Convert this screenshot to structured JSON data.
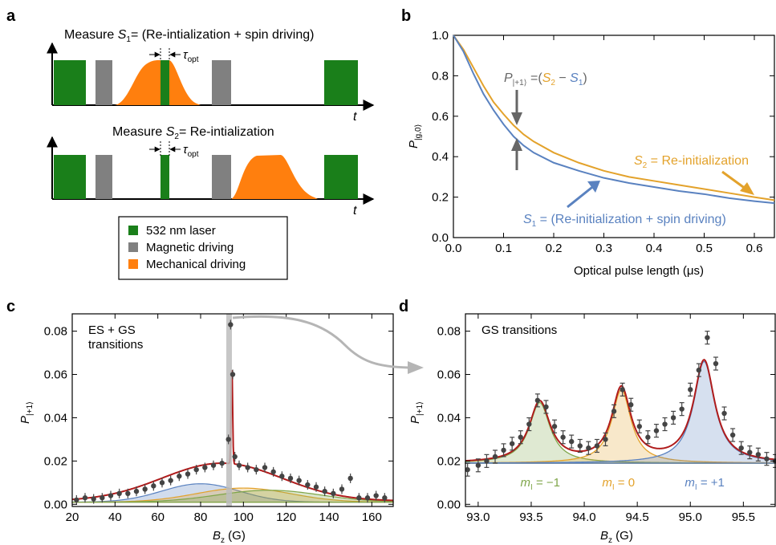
{
  "panel_a": {
    "letter": "a",
    "title1_prefix": "Measure ",
    "title1_var": "S",
    "title1_sub": "1",
    "title1_suffix": "= (Re-intialization + spin driving)",
    "title2_prefix": "Measure ",
    "title2_var": "S",
    "title2_sub": "2",
    "title2_suffix": "= Re-intialization",
    "tau_symbol": "τ",
    "tau_sub": "opt",
    "t_label": "t",
    "legend": [
      {
        "label": "532 nm laser",
        "color": "#1a7f1a"
      },
      {
        "label": "Magnetic driving",
        "color": "#808080"
      },
      {
        "label": "Mechanical driving",
        "color": "#ff7f0e"
      }
    ]
  },
  "chart_data": [
    {
      "panel": "b",
      "type": "line",
      "xlabel": "Optical pulse length (μs)",
      "ylabel_var": "P",
      "ylabel_sub": "|g,0⟩",
      "xlim": [
        0.0,
        0.64
      ],
      "ylim": [
        0.0,
        1.0
      ],
      "xticks": [
        "0.0",
        "0.1",
        "0.2",
        "0.3",
        "0.4",
        "0.5",
        "0.6"
      ],
      "yticks": [
        "0.0",
        "0.2",
        "0.4",
        "0.6",
        "0.8",
        "1.0"
      ],
      "series": [
        {
          "name": "S2 = Re-initialization",
          "color": "#e3a22b",
          "x": [
            0.0,
            0.02,
            0.04,
            0.06,
            0.08,
            0.1,
            0.12,
            0.14,
            0.16,
            0.2,
            0.25,
            0.3,
            0.35,
            0.4,
            0.45,
            0.5,
            0.55,
            0.6,
            0.64
          ],
          "y": [
            1.0,
            0.93,
            0.84,
            0.75,
            0.67,
            0.61,
            0.555,
            0.51,
            0.475,
            0.42,
            0.37,
            0.33,
            0.3,
            0.28,
            0.26,
            0.24,
            0.22,
            0.2,
            0.185
          ]
        },
        {
          "name": "S1 = (Re-initialization + spin driving)",
          "color": "#5a82c0",
          "x": [
            0.0,
            0.02,
            0.04,
            0.06,
            0.08,
            0.1,
            0.12,
            0.14,
            0.16,
            0.2,
            0.25,
            0.3,
            0.35,
            0.4,
            0.45,
            0.5,
            0.55,
            0.6,
            0.64
          ],
          "y": [
            1.0,
            0.92,
            0.81,
            0.71,
            0.63,
            0.56,
            0.5,
            0.455,
            0.42,
            0.37,
            0.33,
            0.295,
            0.27,
            0.25,
            0.23,
            0.215,
            0.195,
            0.18,
            0.17
          ]
        }
      ],
      "annotations": {
        "pdiff_var": "P",
        "pdiff_sub": "|+1⟩",
        "pdiff_eq": " =(",
        "pdiff_s2": "S",
        "pdiff_s2_sub": "2",
        "pdiff_minus": " − ",
        "pdiff_s1": "S",
        "pdiff_s1_sub": "1",
        "pdiff_close": ")",
        "s2_var": "S",
        "s2_sub": "2",
        "s2_text": " = Re-initialization",
        "s1_var": "S",
        "s1_sub": "1",
        "s1_text": " = (Re-initialization + spin driving)"
      }
    },
    {
      "panel": "c",
      "type": "scatter",
      "xlabel_var": "B",
      "xlabel_sub": "z",
      "xlabel_unit": " (G)",
      "ylabel_var": "P",
      "ylabel_sub": "|+1⟩",
      "xlim": [
        20,
        170
      ],
      "ylim": [
        -0.001,
        0.088
      ],
      "xticks": [
        "20",
        "40",
        "60",
        "80",
        "100",
        "120",
        "140",
        "160"
      ],
      "yticks": [
        "0.00",
        "0.02",
        "0.04",
        "0.06",
        "0.08"
      ],
      "inset_text_1": "ES + GS",
      "inset_text_2": "transitions",
      "x": [
        22,
        26,
        30,
        34,
        38,
        42,
        46,
        50,
        54,
        58,
        62,
        66,
        70,
        74,
        78,
        82,
        86,
        90,
        93,
        94,
        95,
        96,
        98,
        102,
        106,
        110,
        114,
        118,
        122,
        126,
        130,
        134,
        138,
        142,
        146,
        150,
        154,
        158,
        162,
        166
      ],
      "y": [
        0.002,
        0.003,
        0.0025,
        0.003,
        0.004,
        0.005,
        0.005,
        0.006,
        0.007,
        0.0085,
        0.01,
        0.011,
        0.013,
        0.014,
        0.016,
        0.017,
        0.018,
        0.019,
        0.03,
        0.083,
        0.06,
        0.022,
        0.018,
        0.017,
        0.016,
        0.017,
        0.015,
        0.013,
        0.012,
        0.011,
        0.009,
        0.008,
        0.006,
        0.005,
        0.007,
        0.012,
        0.003,
        0.003,
        0.004,
        0.003
      ]
    },
    {
      "panel": "d",
      "type": "scatter",
      "xlabel_var": "B",
      "xlabel_sub": "z",
      "xlabel_unit": " (G)",
      "ylabel_var": "P",
      "ylabel_sub": "|+1⟩",
      "xlim": [
        92.88,
        95.8
      ],
      "ylim": [
        -0.001,
        0.088
      ],
      "xticks": [
        "93.0",
        "93.5",
        "94.0",
        "94.5",
        "95.0",
        "95.5"
      ],
      "yticks": [
        "0.00",
        "0.02",
        "0.04",
        "0.06",
        "0.08"
      ],
      "inset_text": "GS transitions",
      "peaks": [
        {
          "label_var": "m",
          "label_sub": "I",
          "label_val": " = −1",
          "center": 93.58,
          "amp": 0.028,
          "color": "#7fa64a"
        },
        {
          "label_var": "m",
          "label_sub": "I",
          "label_val": " = 0",
          "center": 94.35,
          "amp": 0.034,
          "color": "#e3a22b"
        },
        {
          "label_var": "m",
          "label_sub": "I",
          "label_val": " = +1",
          "center": 95.13,
          "amp": 0.047,
          "color": "#5a82c0"
        }
      ],
      "x": [
        92.9,
        93.0,
        93.08,
        93.16,
        93.24,
        93.32,
        93.4,
        93.48,
        93.56,
        93.64,
        93.72,
        93.8,
        93.88,
        93.96,
        94.04,
        94.12,
        94.2,
        94.28,
        94.36,
        94.44,
        94.52,
        94.6,
        94.68,
        94.76,
        94.84,
        94.92,
        95.0,
        95.08,
        95.16,
        95.24,
        95.32,
        95.4,
        95.48,
        95.56,
        95.64,
        95.72,
        95.8
      ],
      "y": [
        0.016,
        0.018,
        0.02,
        0.022,
        0.025,
        0.028,
        0.031,
        0.037,
        0.048,
        0.045,
        0.036,
        0.031,
        0.029,
        0.027,
        0.026,
        0.027,
        0.03,
        0.043,
        0.053,
        0.046,
        0.036,
        0.031,
        0.034,
        0.037,
        0.04,
        0.044,
        0.053,
        0.062,
        0.077,
        0.065,
        0.042,
        0.032,
        0.026,
        0.024,
        0.023,
        0.021,
        0.02
      ]
    }
  ],
  "panel_letters": {
    "b": "b",
    "c": "c",
    "d": "d"
  }
}
